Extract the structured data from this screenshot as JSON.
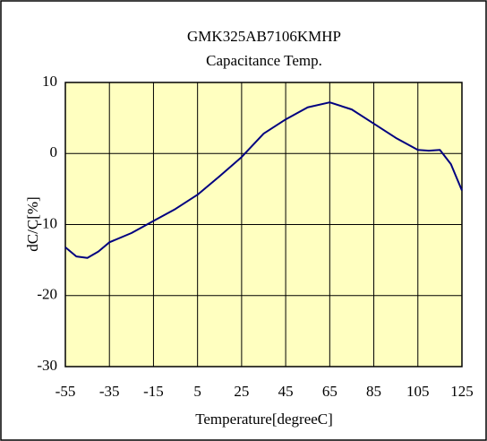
{
  "chart_data": {
    "type": "line",
    "title": "GMK325AB7106KMHP",
    "subtitle": "Capacitance Temp.",
    "x_label": "Temperature[degreeC]",
    "y_label": "dC/C[%]",
    "x": [
      -55,
      -50,
      -45,
      -40,
      -35,
      -25,
      -15,
      -5,
      5,
      15,
      25,
      35,
      45,
      55,
      65,
      75,
      85,
      95,
      105,
      110,
      115,
      120,
      125
    ],
    "series": [
      {
        "name": "dC/C",
        "color": "#000080",
        "values": [
          -13.2,
          -14.5,
          -14.7,
          -13.8,
          -12.5,
          -11.2,
          -9.5,
          -7.8,
          -5.8,
          -3.2,
          -0.5,
          2.8,
          4.8,
          6.5,
          7.2,
          6.2,
          4.2,
          2.2,
          0.5,
          0.4,
          0.5,
          -1.5,
          -5.2
        ]
      }
    ],
    "xlim": [
      -55,
      125
    ],
    "xticks": [
      -55,
      -35,
      -15,
      5,
      25,
      45,
      65,
      85,
      105,
      125
    ],
    "ylim": [
      -30,
      10
    ],
    "yticks": [
      10,
      0,
      -10,
      -20,
      -30
    ],
    "grid": true,
    "plot_background": "#ffffc0"
  }
}
